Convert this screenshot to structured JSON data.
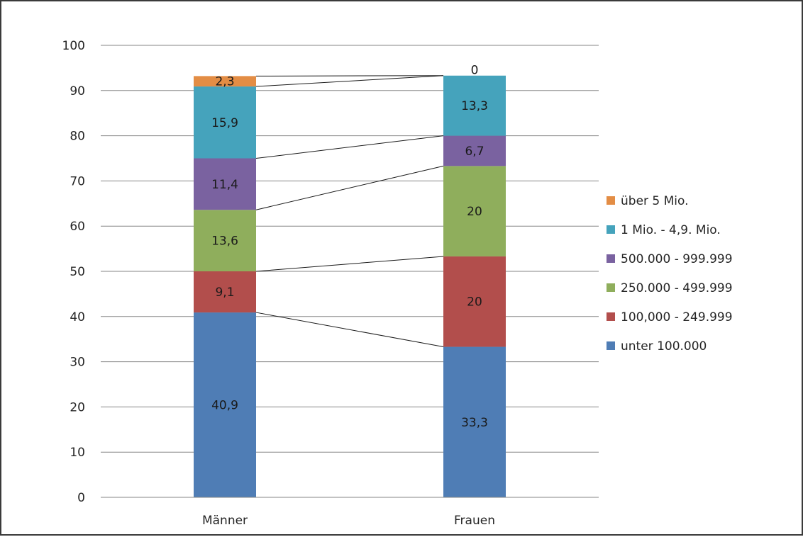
{
  "chart_data": {
    "type": "bar",
    "stacked": true,
    "categories": [
      "Männer",
      "Frauen"
    ],
    "series": [
      {
        "name": "unter 100.000",
        "values": [
          40.9,
          33.3
        ],
        "labels": [
          "40,9",
          "33,3"
        ],
        "color": "#4f7db5"
      },
      {
        "name": "100,000 - 249.999",
        "values": [
          9.1,
          20
        ],
        "labels": [
          "9,1",
          "20"
        ],
        "color": "#b24e4c"
      },
      {
        "name": "250.000 - 499.999",
        "values": [
          13.6,
          20
        ],
        "labels": [
          "13,6",
          "20"
        ],
        "color": "#8fae5c"
      },
      {
        "name": "500.000 - 999.999",
        "values": [
          11.4,
          6.7
        ],
        "labels": [
          "11,4",
          "6,7"
        ],
        "color": "#7a62a0"
      },
      {
        "name": "1 Mio. - 4,9. Mio.",
        "values": [
          15.9,
          13.3
        ],
        "labels": [
          "15,9",
          "13,3"
        ],
        "color": "#45a3bc"
      },
      {
        "name": "über 5 Mio.",
        "values": [
          2.3,
          0
        ],
        "labels": [
          "2,3",
          "0"
        ],
        "color": "#e38d45"
      }
    ],
    "title": "",
    "xlabel": "",
    "ylabel": "",
    "ylim": [
      0,
      100
    ],
    "yticks": [
      "0",
      "10",
      "20",
      "30",
      "40",
      "50",
      "60",
      "70",
      "80",
      "90",
      "100"
    ],
    "grid": true,
    "series_lines": true,
    "legend_position": "right"
  }
}
